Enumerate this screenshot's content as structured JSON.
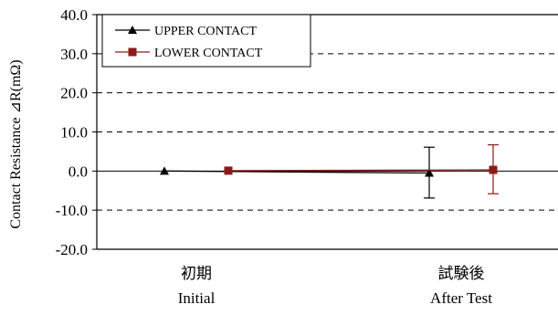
{
  "chart_data": {
    "type": "line",
    "ylabel": "Contact Resistance ⊿R(mΩ)",
    "ylim": [
      -20,
      40
    ],
    "yticks": [
      "40.0",
      "30.0",
      "20.0",
      "10.0",
      "0.0",
      "-10.0",
      "-20.0"
    ],
    "categories": [
      {
        "ja": "初期",
        "en": "Initial"
      },
      {
        "ja": "試験後",
        "en": "After Test"
      }
    ],
    "grid": "horizontal-dashed",
    "legend": "top-left",
    "series": [
      {
        "name": "UPPER CONTACT",
        "marker": "triangle",
        "color": "#000000",
        "values": [
          0.0,
          -0.5
        ],
        "error_low": [
          0.0,
          -6.9
        ],
        "error_high": [
          0.0,
          6.1
        ]
      },
      {
        "name": "LOWER CONTACT",
        "marker": "square",
        "color": "#8b1a1a",
        "values": [
          0.1,
          0.3
        ],
        "error_low": [
          0.1,
          -5.8
        ],
        "error_high": [
          0.1,
          6.7
        ]
      }
    ]
  }
}
